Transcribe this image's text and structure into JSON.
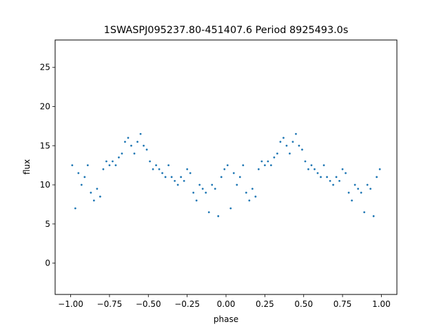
{
  "chart_data": {
    "type": "scatter",
    "title": "1SWASPJ095237.80-451407.6 Period 8925493.0s",
    "xlabel": "phase",
    "ylabel": "flux",
    "xlim": [
      -1.1,
      1.1
    ],
    "ylim": [
      -4,
      28.5
    ],
    "x_ticks": [
      -1.0,
      -0.75,
      -0.5,
      -0.25,
      0.0,
      0.25,
      0.5,
      0.75,
      1.0
    ],
    "x_tick_labels": [
      "−1.00",
      "−0.75",
      "−0.50",
      "−0.25",
      "0.00",
      "0.25",
      "0.50",
      "0.75",
      "1.00"
    ],
    "y_ticks": [
      0,
      5,
      10,
      15,
      20,
      25
    ],
    "y_tick_labels": [
      "0",
      "5",
      "10",
      "15",
      "20",
      "25"
    ],
    "grid": false,
    "legend": "none",
    "marker_color": "#1f77b4",
    "series": [
      {
        "x": [
          -0.99,
          -0.97,
          -0.95,
          -0.93,
          -0.91,
          -0.89,
          -0.87,
          -0.85,
          -0.83,
          -0.81,
          -0.79,
          -0.77,
          -0.75,
          -0.73,
          -0.71,
          -0.69,
          -0.67,
          -0.65,
          -0.63,
          -0.61,
          -0.59,
          -0.57,
          -0.55,
          -0.53,
          -0.51,
          -0.49,
          -0.47,
          -0.45,
          -0.43,
          -0.41,
          -0.39,
          -0.37,
          -0.35,
          -0.33,
          -0.31,
          -0.29,
          -0.27,
          -0.25,
          -0.23,
          -0.21,
          -0.19,
          -0.17,
          -0.15,
          -0.13,
          -0.11,
          -0.09,
          -0.07,
          -0.05,
          -0.03,
          -0.01,
          0.01,
          0.03,
          0.05,
          0.07,
          0.09,
          0.11,
          0.13,
          0.15,
          0.17,
          0.19,
          0.21,
          0.23,
          0.25,
          0.27,
          0.29,
          0.31,
          0.33,
          0.35,
          0.37,
          0.39,
          0.41,
          0.43,
          0.45,
          0.47,
          0.49,
          0.51,
          0.53,
          0.55,
          0.57,
          0.59,
          0.61,
          0.63,
          0.65,
          0.67,
          0.69,
          0.71,
          0.73,
          0.75,
          0.77,
          0.79,
          0.81,
          0.83,
          0.85,
          0.87,
          0.89,
          0.91,
          0.93,
          0.95,
          0.97,
          0.99
        ],
        "y": [
          12.5,
          7.0,
          11.5,
          10.0,
          11.0,
          12.5,
          9.0,
          8.0,
          9.5,
          8.5,
          12.0,
          13.0,
          12.5,
          13.0,
          12.5,
          13.5,
          14.0,
          15.5,
          16.0,
          15.0,
          14.0,
          15.5,
          16.5,
          15.0,
          14.5,
          13.0,
          12.0,
          12.5,
          12.0,
          11.5,
          11.0,
          12.5,
          11.0,
          10.5,
          10.0,
          11.0,
          10.5,
          12.0,
          11.5,
          9.0,
          8.0,
          10.0,
          9.5,
          9.0,
          6.5,
          10.0,
          9.5,
          6.0,
          11.0,
          12.0,
          12.5,
          7.0,
          11.5,
          10.0,
          11.0,
          12.5,
          9.0,
          8.0,
          9.5,
          8.5,
          12.0,
          13.0,
          12.5,
          13.0,
          12.5,
          13.5,
          14.0,
          15.5,
          16.0,
          15.0,
          14.0,
          15.5,
          16.5,
          15.0,
          14.5,
          13.0,
          12.0,
          12.5,
          12.0,
          11.5,
          11.0,
          12.5,
          11.0,
          10.5,
          10.0,
          11.0,
          10.5,
          12.0,
          11.5,
          9.0,
          8.0,
          10.0,
          9.5,
          9.0,
          6.5,
          10.0,
          9.5,
          6.0,
          11.0,
          12.0
        ]
      }
    ]
  }
}
